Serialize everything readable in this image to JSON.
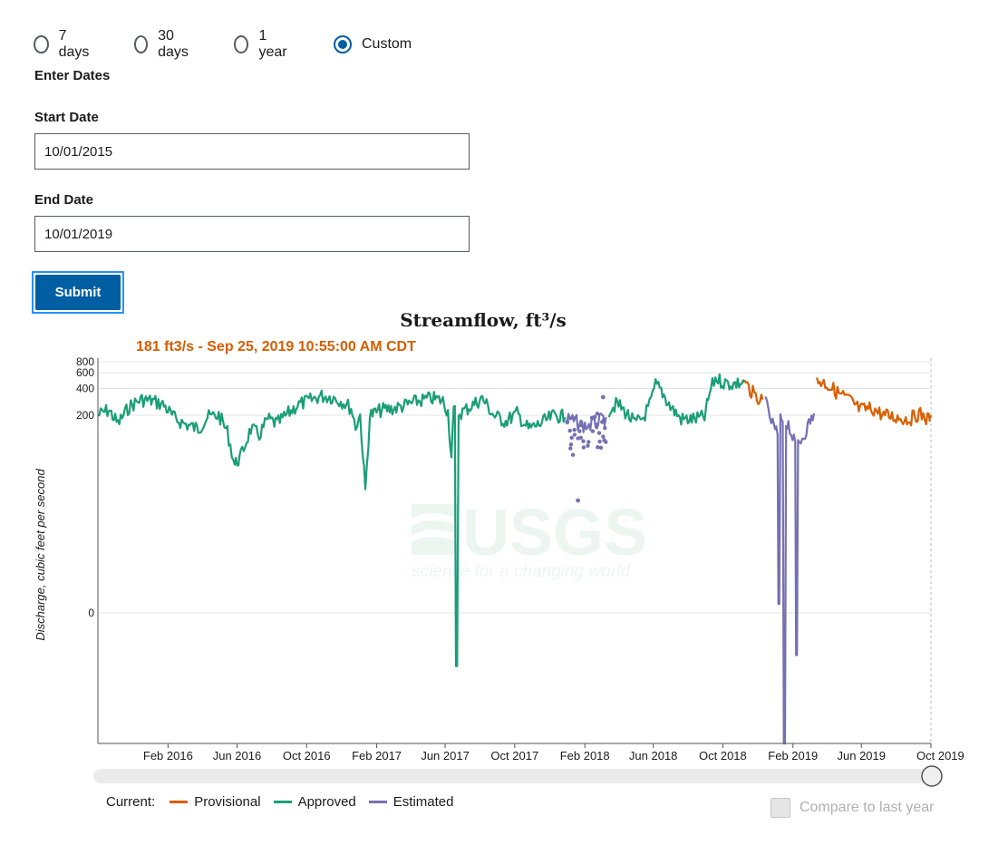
{
  "period_options": [
    {
      "label": "7 days",
      "checked": false
    },
    {
      "label": "30 days",
      "checked": false
    },
    {
      "label": "1 year",
      "checked": false
    },
    {
      "label": "Custom",
      "checked": true
    }
  ],
  "form": {
    "enter_dates_heading": "Enter Dates",
    "start_date_label": "Start Date",
    "start_date_value": "10/01/2015",
    "end_date_label": "End Date",
    "end_date_value": "10/01/2019",
    "submit_label": "Submit"
  },
  "chart_data": {
    "type": "line",
    "title": "Streamflow, ft³/s",
    "cursor_readout": "181 ft3/s - Sep 25, 2019 10:55:00 AM CDT",
    "ylabel": "Discharge, cubic feet per second",
    "yscale": "log",
    "yticks": [
      {
        "label": "800",
        "value": 800
      },
      {
        "label": "600",
        "value": 600
      },
      {
        "label": "400",
        "value": 400
      },
      {
        "label": "200",
        "value": 200
      },
      {
        "label": "0",
        "value": 0
      }
    ],
    "xticks": [
      "Feb 2016",
      "Jun 2016",
      "Oct 2016",
      "Feb 2017",
      "Jun 2017",
      "Oct 2017",
      "Feb 2018",
      "Jun 2018",
      "Oct 2018",
      "Feb 2019",
      "Jun 2019",
      "Oct 2019"
    ],
    "xlim": [
      "2015-10-01",
      "2019-10-01"
    ],
    "grid": true,
    "watermark": {
      "logo": "USGS",
      "tagline": "science for a changing world"
    },
    "series": [
      {
        "name": "Approved",
        "color": "#1b9e77",
        "points": [
          [
            "2015-10-01",
            200
          ],
          [
            "2015-10-20",
            230
          ],
          [
            "2015-11-05",
            160
          ],
          [
            "2015-11-25",
            250
          ],
          [
            "2015-12-15",
            300
          ],
          [
            "2016-01-05",
            290
          ],
          [
            "2016-01-25",
            260
          ],
          [
            "2016-02-10",
            190
          ],
          [
            "2016-03-01",
            160
          ],
          [
            "2016-03-25",
            140
          ],
          [
            "2016-04-10",
            190
          ],
          [
            "2016-04-30",
            200
          ],
          [
            "2016-05-15",
            130
          ],
          [
            "2016-05-28",
            55
          ],
          [
            "2016-06-08",
            70
          ],
          [
            "2016-06-25",
            140
          ],
          [
            "2016-07-10",
            120
          ],
          [
            "2016-07-25",
            180
          ],
          [
            "2016-08-10",
            160
          ],
          [
            "2016-08-30",
            210
          ],
          [
            "2016-09-15",
            260
          ],
          [
            "2016-10-05",
            290
          ],
          [
            "2016-10-25",
            330
          ],
          [
            "2016-11-15",
            320
          ],
          [
            "2016-12-05",
            280
          ],
          [
            "2016-12-18",
            240
          ],
          [
            "2016-12-26",
            150
          ],
          [
            "2017-01-03",
            200
          ],
          [
            "2017-01-12",
            28
          ],
          [
            "2017-01-20",
            200
          ],
          [
            "2017-02-10",
            230
          ],
          [
            "2017-03-05",
            240
          ],
          [
            "2017-03-25",
            260
          ],
          [
            "2017-04-15",
            290
          ],
          [
            "2017-05-10",
            310
          ],
          [
            "2017-05-28",
            290
          ],
          [
            "2017-06-06",
            220
          ],
          [
            "2017-06-12",
            65
          ],
          [
            "2017-06-16",
            230
          ],
          [
            "2017-06-22",
            0.3
          ],
          [
            "2017-06-27",
            210
          ],
          [
            "2017-07-15",
            250
          ],
          [
            "2017-08-05",
            310
          ],
          [
            "2017-08-25",
            200
          ],
          [
            "2017-09-15",
            170
          ],
          [
            "2017-10-05",
            210
          ],
          [
            "2017-10-25",
            140
          ],
          [
            "2017-11-15",
            160
          ],
          [
            "2017-12-10",
            200
          ],
          [
            "2017-12-28",
            190
          ]
        ]
      },
      {
        "name": "Approved",
        "color": "#1b9e77",
        "points": [
          [
            "2018-03-15",
            230
          ],
          [
            "2018-03-30",
            270
          ],
          [
            "2018-04-15",
            210
          ],
          [
            "2018-04-30",
            160
          ],
          [
            "2018-05-15",
            190
          ],
          [
            "2018-05-28",
            280
          ],
          [
            "2018-06-05",
            440
          ],
          [
            "2018-06-15",
            380
          ],
          [
            "2018-07-01",
            250
          ],
          [
            "2018-07-20",
            180
          ],
          [
            "2018-08-10",
            180
          ],
          [
            "2018-08-30",
            190
          ],
          [
            "2018-09-10",
            400
          ],
          [
            "2018-09-18",
            520
          ],
          [
            "2018-10-05",
            460
          ],
          [
            "2018-10-20",
            450
          ],
          [
            "2018-11-08",
            470
          ]
        ]
      },
      {
        "name": "Estimated",
        "color": "#7570b3",
        "points": [
          [
            "2018-01-01",
            180
          ],
          [
            "2018-01-15",
            170
          ],
          [
            "2018-02-01",
            150
          ],
          [
            "2018-02-20",
            160
          ],
          [
            "2018-03-10",
            190
          ]
        ]
      },
      {
        "name": "Estimated",
        "color": "#7570b3",
        "points": [
          [
            "2018-12-15",
            270
          ],
          [
            "2018-12-25",
            170
          ],
          [
            "2019-01-05",
            120
          ],
          [
            "2019-01-08",
            1.5
          ],
          [
            "2019-01-12",
            180
          ],
          [
            "2019-01-18",
            0.01
          ],
          [
            "2019-01-24",
            160
          ],
          [
            "2019-02-05",
            90
          ],
          [
            "2019-02-08",
            0.4
          ],
          [
            "2019-02-12",
            100
          ],
          [
            "2019-02-20",
            120
          ],
          [
            "2019-03-01",
            160
          ],
          [
            "2019-03-10",
            210
          ]
        ]
      },
      {
        "name": "Provisional",
        "color": "#d95f02",
        "points": [
          [
            "2018-11-08",
            470
          ],
          [
            "2018-11-25",
            340
          ],
          [
            "2018-12-10",
            300
          ]
        ]
      },
      {
        "name": "Provisional",
        "color": "#d95f02",
        "points": [
          [
            "2019-03-15",
            500
          ],
          [
            "2019-04-01",
            450
          ],
          [
            "2019-04-20",
            360
          ],
          [
            "2019-05-10",
            300
          ],
          [
            "2019-05-30",
            230
          ],
          [
            "2019-06-20",
            240
          ],
          [
            "2019-07-10",
            200
          ],
          [
            "2019-08-01",
            190
          ],
          [
            "2019-08-25",
            180
          ],
          [
            "2019-09-10",
            210
          ],
          [
            "2019-09-25",
            181
          ],
          [
            "2019-10-01",
            200
          ]
        ]
      }
    ]
  },
  "legend": {
    "title": "Current:",
    "items": [
      {
        "label": "Provisional",
        "color": "#d95f02"
      },
      {
        "label": "Approved",
        "color": "#1b9e77"
      },
      {
        "label": "Estimated",
        "color": "#7570b3"
      }
    ]
  },
  "compare": {
    "label": "Compare to last year",
    "checked": false,
    "disabled": true
  }
}
